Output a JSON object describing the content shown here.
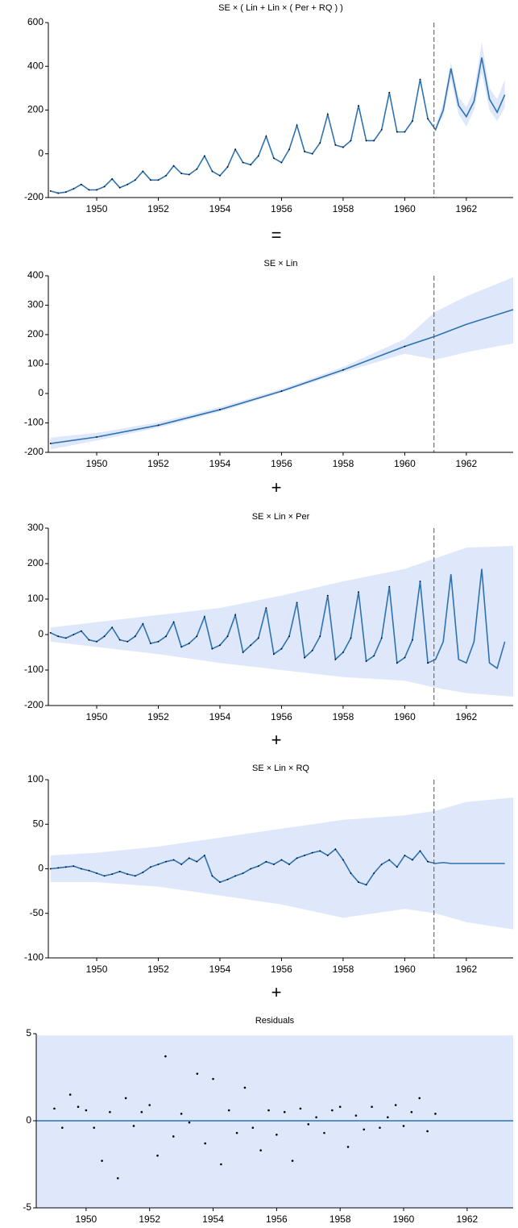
{
  "operators": [
    "=",
    "+",
    "+",
    "+"
  ],
  "chart_data": [
    {
      "type": "line",
      "title": "SE × ( Lin + Lin × ( Per + RQ ) )",
      "color": "#2e72b0",
      "xlim": [
        1948.43,
        1963.52
      ],
      "xticks": [
        1950,
        1952,
        1954,
        1956,
        1958,
        1960,
        1962
      ],
      "ylim": [
        -200,
        600
      ],
      "yticks": [
        -200,
        0,
        200,
        400,
        600
      ],
      "vline": 1960.95,
      "x": [
        1948.5,
        1948.75,
        1949,
        1949.25,
        1949.5,
        1949.75,
        1950,
        1950.25,
        1950.5,
        1950.75,
        1951,
        1951.25,
        1951.5,
        1951.75,
        1952,
        1952.25,
        1952.5,
        1952.75,
        1953,
        1953.25,
        1953.5,
        1953.75,
        1954,
        1954.25,
        1954.5,
        1954.75,
        1955,
        1955.25,
        1955.5,
        1955.75,
        1956,
        1956.25,
        1956.5,
        1956.75,
        1957,
        1957.25,
        1957.5,
        1957.75,
        1958,
        1958.25,
        1958.5,
        1958.75,
        1959,
        1959.25,
        1959.5,
        1959.75,
        1960,
        1960.25,
        1960.5,
        1960.75,
        1961,
        1961.25,
        1961.5,
        1961.75,
        1962,
        1962.25,
        1962.5,
        1962.75,
        1963,
        1963.25
      ],
      "values": [
        -170,
        -180,
        -175,
        -160,
        -140,
        -165,
        -165,
        -150,
        -115,
        -155,
        -140,
        -120,
        -80,
        -120,
        -120,
        -100,
        -55,
        -90,
        -95,
        -70,
        -10,
        -80,
        -100,
        -60,
        20,
        -40,
        -50,
        -10,
        80,
        -20,
        -40,
        20,
        130,
        10,
        0,
        50,
        180,
        40,
        30,
        60,
        220,
        60,
        60,
        110,
        280,
        100,
        100,
        150,
        340,
        160,
        110,
        200,
        390,
        220,
        170,
        240,
        440,
        250,
        190,
        270
      ],
      "band": {
        "color": "#dfe8fb",
        "x": [
          1960.95,
          1961.25,
          1961.5,
          1961.75,
          1962,
          1962.25,
          1962.5,
          1962.75,
          1963,
          1963.25
        ],
        "lower": [
          110,
          170,
          340,
          180,
          125,
          200,
          370,
          200,
          150,
          210
        ],
        "upper": [
          110,
          230,
          420,
          260,
          215,
          290,
          510,
          300,
          250,
          340
        ]
      }
    },
    {
      "type": "line",
      "title": "SE × Lin",
      "color": "#2e72b0",
      "xlim": [
        1948.43,
        1963.52
      ],
      "xticks": [
        1950,
        1952,
        1954,
        1956,
        1958,
        1960,
        1962
      ],
      "ylim": [
        -200,
        400
      ],
      "yticks": [
        -200,
        -100,
        0,
        100,
        200,
        300,
        400
      ],
      "vline": 1960.95,
      "x": [
        1948.5,
        1950,
        1952,
        1954,
        1956,
        1958,
        1960,
        1961,
        1962,
        1963.52
      ],
      "values": [
        -170,
        -148,
        -108,
        -55,
        8,
        80,
        160,
        195,
        235,
        285
      ],
      "band": {
        "color": "#dfe8fb",
        "x": [
          1948.5,
          1950,
          1952,
          1954,
          1956,
          1958,
          1960,
          1961,
          1962,
          1963.52
        ],
        "lower": [
          -190,
          -160,
          -116,
          -62,
          3,
          72,
          135,
          115,
          140,
          170
        ],
        "upper": [
          -150,
          -134,
          -98,
          -46,
          15,
          90,
          185,
          278,
          330,
          395
        ]
      }
    },
    {
      "type": "line",
      "title": "SE × Lin × Per",
      "color": "#2e72b0",
      "xlim": [
        1948.43,
        1963.52
      ],
      "xticks": [
        1950,
        1952,
        1954,
        1956,
        1958,
        1960,
        1962
      ],
      "ylim": [
        -200,
        300
      ],
      "yticks": [
        -200,
        -100,
        0,
        100,
        200,
        300
      ],
      "vline": 1960.95,
      "x": [
        1948.5,
        1948.75,
        1949,
        1949.25,
        1949.5,
        1949.75,
        1950,
        1950.25,
        1950.5,
        1950.75,
        1951,
        1951.25,
        1951.5,
        1951.75,
        1952,
        1952.25,
        1952.5,
        1952.75,
        1953,
        1953.25,
        1953.5,
        1953.75,
        1954,
        1954.25,
        1954.5,
        1954.75,
        1955,
        1955.25,
        1955.5,
        1955.75,
        1956,
        1956.25,
        1956.5,
        1956.75,
        1957,
        1957.25,
        1957.5,
        1957.75,
        1958,
        1958.25,
        1958.5,
        1958.75,
        1959,
        1959.25,
        1959.5,
        1959.75,
        1960,
        1960.25,
        1960.5,
        1960.75,
        1961,
        1961.25,
        1961.5,
        1961.75,
        1962,
        1962.25,
        1962.5,
        1962.75,
        1963,
        1963.25
      ],
      "values": [
        5,
        -5,
        -10,
        0,
        10,
        -15,
        -20,
        -5,
        20,
        -15,
        -20,
        -5,
        30,
        -25,
        -20,
        -5,
        35,
        -35,
        -25,
        -5,
        50,
        -40,
        -30,
        -5,
        55,
        -50,
        -30,
        -10,
        75,
        -55,
        -40,
        -5,
        90,
        -65,
        -45,
        -5,
        110,
        -70,
        -50,
        -10,
        120,
        -75,
        -60,
        -10,
        135,
        -80,
        -65,
        -15,
        150,
        -80,
        -70,
        -20,
        170,
        -70,
        -80,
        -20,
        185,
        -80,
        -95,
        -20
      ],
      "band": {
        "color": "#dfe8fb",
        "x": [
          1948.5,
          1950,
          1952,
          1954,
          1956,
          1958,
          1960,
          1961,
          1962,
          1963.52
        ],
        "lower": [
          -20,
          -35,
          -55,
          -80,
          -100,
          -120,
          -130,
          -150,
          -165,
          -175
        ],
        "upper": [
          20,
          35,
          55,
          75,
          110,
          150,
          185,
          215,
          245,
          250
        ]
      }
    },
    {
      "type": "line",
      "title": "SE × Lin × RQ",
      "color": "#2e72b0",
      "xlim": [
        1948.43,
        1963.52
      ],
      "xticks": [
        1950,
        1952,
        1954,
        1956,
        1958,
        1960,
        1962
      ],
      "ylim": [
        -100,
        100
      ],
      "yticks": [
        -100,
        -50,
        0,
        50,
        100
      ],
      "vline": 1960.95,
      "x": [
        1948.5,
        1948.75,
        1949,
        1949.25,
        1949.5,
        1949.75,
        1950,
        1950.25,
        1950.5,
        1950.75,
        1951,
        1951.25,
        1951.5,
        1951.75,
        1952,
        1952.25,
        1952.5,
        1952.75,
        1953,
        1953.25,
        1953.5,
        1953.75,
        1954,
        1954.25,
        1954.5,
        1954.75,
        1955,
        1955.25,
        1955.5,
        1955.75,
        1956,
        1956.25,
        1956.5,
        1956.75,
        1957,
        1957.25,
        1957.5,
        1957.75,
        1958,
        1958.25,
        1958.5,
        1958.75,
        1959,
        1959.25,
        1959.5,
        1959.75,
        1960,
        1960.25,
        1960.5,
        1960.75,
        1961,
        1961.25,
        1961.5,
        1961.75,
        1962,
        1962.25,
        1962.5,
        1962.75,
        1963,
        1963.25
      ],
      "values": [
        0,
        1,
        2,
        3,
        0,
        -2,
        -5,
        -8,
        -6,
        -3,
        -6,
        -8,
        -4,
        2,
        5,
        8,
        10,
        5,
        12,
        8,
        15,
        -8,
        -15,
        -12,
        -8,
        -5,
        0,
        3,
        8,
        5,
        10,
        5,
        12,
        15,
        18,
        20,
        15,
        22,
        10,
        -5,
        -15,
        -18,
        -5,
        5,
        10,
        2,
        15,
        10,
        20,
        8,
        6,
        7,
        6,
        6,
        6,
        6,
        6,
        6,
        6,
        6
      ],
      "band": {
        "color": "#dfe8fb",
        "x": [
          1948.5,
          1950,
          1952,
          1954,
          1956,
          1958,
          1960,
          1961,
          1962,
          1963.52
        ],
        "lower": [
          -15,
          -15,
          -20,
          -30,
          -40,
          -55,
          -45,
          -50,
          -60,
          -68
        ],
        "upper": [
          15,
          18,
          25,
          35,
          45,
          55,
          60,
          65,
          75,
          80
        ]
      }
    },
    {
      "type": "scatter",
      "title": "Residuals",
      "color": "#000000",
      "xlim": [
        1948.43,
        1963.45
      ],
      "xticks": [
        1950,
        1952,
        1954,
        1956,
        1958,
        1960,
        1962
      ],
      "ylim": [
        -5,
        5
      ],
      "yticks": [
        -5,
        0,
        5
      ],
      "x": [
        1949,
        1949.25,
        1949.5,
        1949.75,
        1950,
        1950.25,
        1950.5,
        1950.75,
        1951,
        1951.25,
        1951.5,
        1951.75,
        1952,
        1952.25,
        1952.5,
        1952.75,
        1953,
        1953.25,
        1953.5,
        1953.75,
        1954,
        1954.25,
        1954.5,
        1954.75,
        1955,
        1955.25,
        1955.5,
        1955.75,
        1956,
        1956.25,
        1956.5,
        1956.75,
        1957,
        1957.25,
        1957.5,
        1957.75,
        1958,
        1958.25,
        1958.5,
        1958.75,
        1959,
        1959.25,
        1959.5,
        1959.75,
        1960,
        1960.25,
        1960.5,
        1960.75,
        1961
      ],
      "values": [
        0.7,
        -0.4,
        1.5,
        0.8,
        0.6,
        -0.4,
        -2.3,
        0.5,
        -3.3,
        1.3,
        -0.3,
        0.5,
        0.9,
        -2.0,
        3.7,
        -0.9,
        0.4,
        -0.1,
        2.7,
        -1.3,
        2.4,
        -2.5,
        0.6,
        -0.7,
        1.9,
        -0.4,
        -1.7,
        0.6,
        -0.8,
        0.5,
        -2.3,
        0.7,
        -0.2,
        0.2,
        -0.7,
        0.6,
        0.8,
        -1.5,
        0.3,
        -0.5,
        0.8,
        -0.4,
        0.2,
        0.9,
        -0.3,
        0.5,
        1.3,
        -0.6,
        0.4
      ],
      "line": {
        "color": "#2e72b0",
        "x": [
          1948.43,
          1963.45
        ],
        "values": [
          0,
          0
        ]
      },
      "band": {
        "color": "#dfe8fb",
        "x": [
          1948.43,
          1963.45
        ],
        "lower": [
          -5,
          -5
        ],
        "upper": [
          4.9,
          4.9
        ]
      }
    }
  ]
}
